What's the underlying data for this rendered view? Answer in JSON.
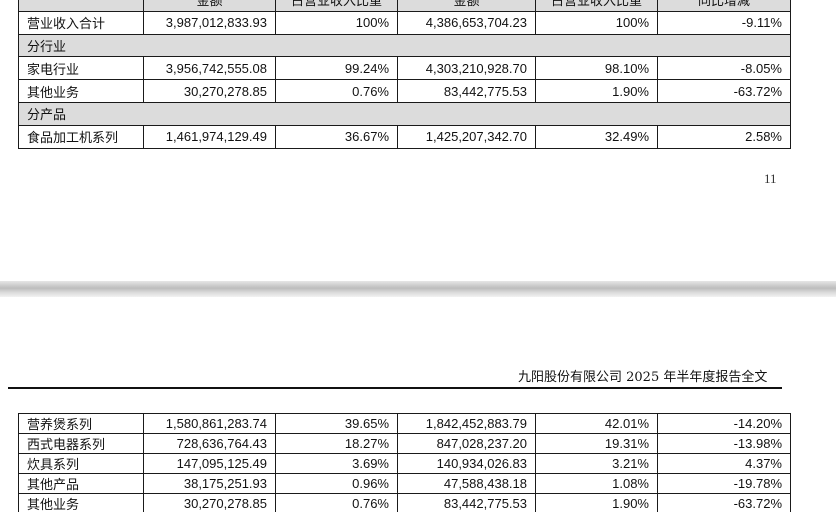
{
  "table_top": {
    "headers": [
      "",
      "金额",
      "占营业收入比重",
      "金额",
      "占营业收入比重",
      "同比增减"
    ],
    "total": {
      "label": "营业收入合计",
      "cells": [
        "3,987,012,833.93",
        "100%",
        "4,386,653,704.23",
        "100%",
        "-9.11%"
      ]
    },
    "section_industry": "分行业",
    "industry_rows": [
      {
        "label": "家电行业",
        "cells": [
          "3,956,742,555.08",
          "99.24%",
          "4,303,210,928.70",
          "98.10%",
          "-8.05%"
        ]
      },
      {
        "label": "其他业务",
        "cells": [
          "30,270,278.85",
          "0.76%",
          "83,442,775.53",
          "1.90%",
          "-63.72%"
        ]
      }
    ],
    "section_product": "分产品",
    "product_rows": [
      {
        "label": "食品加工机系列",
        "cells": [
          "1,461,974,129.49",
          "36.67%",
          "1,425,207,342.70",
          "32.49%",
          "2.58%"
        ]
      }
    ]
  },
  "page_number": "11",
  "doc_header": "九阳股份有限公司 2025 年半年度报告全文",
  "table_bottom": {
    "rows": [
      {
        "label": "营养煲系列",
        "cells": [
          "1,580,861,283.74",
          "39.65%",
          "1,842,452,883.79",
          "42.01%",
          "-14.20%"
        ]
      },
      {
        "label": "西式电器系列",
        "cells": [
          "728,636,764.43",
          "18.27%",
          "847,028,237.20",
          "19.31%",
          "-13.98%"
        ]
      },
      {
        "label": "炊具系列",
        "cells": [
          "147,095,125.49",
          "3.69%",
          "140,934,026.83",
          "3.21%",
          "4.37%"
        ]
      },
      {
        "label": "其他产品",
        "cells": [
          "38,175,251.93",
          "0.96%",
          "47,588,438.18",
          "1.08%",
          "-19.78%"
        ]
      },
      {
        "label": "其他业务",
        "cells": [
          "30,270,278.85",
          "0.76%",
          "83,442,775.53",
          "1.90%",
          "-63.72%"
        ]
      }
    ]
  }
}
